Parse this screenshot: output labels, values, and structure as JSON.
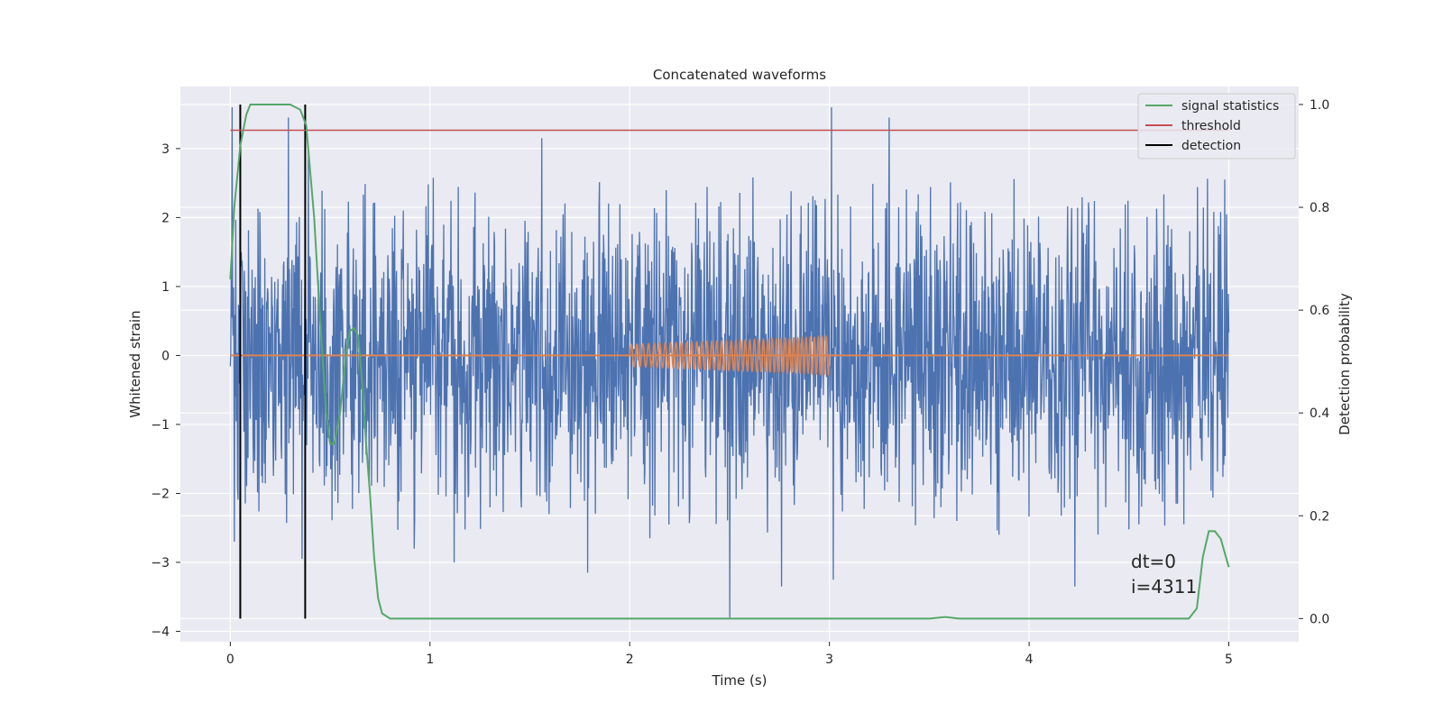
{
  "chart_data": {
    "type": "line",
    "title": "Concatenated waveforms",
    "xlabel": "Time (s)",
    "ylabel": "Whitened strain",
    "ylabel_right": "Detection probability",
    "xlim": [
      -0.25,
      5.35
    ],
    "ylim": [
      -4.15,
      3.9
    ],
    "ylim_right": [
      -0.045,
      1.035
    ],
    "x_ticks": [
      0,
      1,
      2,
      3,
      4,
      5
    ],
    "y_ticks": [
      -4,
      -3,
      -2,
      -1,
      0,
      1,
      2,
      3
    ],
    "y_ticks_right": [
      0.0,
      0.2,
      0.4,
      0.6,
      0.8,
      1.0
    ],
    "x_tick_labels": [
      "0",
      "1",
      "2",
      "3",
      "4",
      "5"
    ],
    "y_tick_labels": [
      "−4",
      "−3",
      "−2",
      "−1",
      "0",
      "1",
      "2",
      "3"
    ],
    "y_tick_labels_right": [
      "0.0",
      "0.2",
      "0.4",
      "0.6",
      "0.8",
      "1.0"
    ],
    "grid": true,
    "legend_position": "top-right",
    "legend": [
      {
        "label": "signal statistics",
        "color": "#55a868"
      },
      {
        "label": "threshold",
        "color": "#c44e52"
      },
      {
        "label": "detection",
        "color": "#000000"
      }
    ],
    "colors": {
      "strain": "#4c72b0",
      "waveform": "#dd8452",
      "signal_statistics": "#55a868",
      "threshold": "#c44e52",
      "detection": "#000000",
      "background": "#eaeaf2"
    },
    "strain": {
      "x_range": [
        0,
        5
      ],
      "typical_abs": 1.3,
      "spikes": [
        {
          "x": 0.01,
          "y": 3.6
        },
        {
          "x": 0.02,
          "y": -2.7
        },
        {
          "x": 0.29,
          "y": 3.45
        },
        {
          "x": 0.36,
          "y": -2.95
        },
        {
          "x": 0.39,
          "y": 3.0
        },
        {
          "x": 0.92,
          "y": -2.8
        },
        {
          "x": 1.12,
          "y": -3.0
        },
        {
          "x": 1.56,
          "y": 3.15
        },
        {
          "x": 1.79,
          "y": -3.15
        },
        {
          "x": 2.1,
          "y": -2.65
        },
        {
          "x": 2.5,
          "y": -3.8
        },
        {
          "x": 2.76,
          "y": -3.35
        },
        {
          "x": 3.01,
          "y": 3.6
        },
        {
          "x": 3.02,
          "y": -3.25
        },
        {
          "x": 3.3,
          "y": 3.45
        },
        {
          "x": 3.85,
          "y": -2.6
        },
        {
          "x": 4.23,
          "y": -3.35
        },
        {
          "x": 4.55,
          "y": -2.45
        },
        {
          "x": 4.98,
          "y": 2.55
        }
      ]
    },
    "waveform": {
      "baseline": 0,
      "chirp_start": 2.0,
      "chirp_end": 3.0,
      "amplitude_start": 0.16,
      "amplitude_end": 0.27,
      "cycles": 42
    },
    "signal_statistics": {
      "x": [
        0,
        0.02,
        0.05,
        0.08,
        0.1,
        0.15,
        0.2,
        0.3,
        0.35,
        0.38,
        0.42,
        0.45,
        0.48,
        0.5,
        0.52,
        0.55,
        0.58,
        0.6,
        0.62,
        0.64,
        0.66,
        0.68,
        0.7,
        0.72,
        0.74,
        0.76,
        0.8,
        1.5,
        2.0,
        3.0,
        3.5,
        3.58,
        3.65,
        4.0,
        4.5,
        4.8,
        4.84,
        4.87,
        4.9,
        4.93,
        4.96,
        5.0
      ],
      "y": [
        0.66,
        0.8,
        0.92,
        0.98,
        1.0,
        1.0,
        1.0,
        1.0,
        0.99,
        0.96,
        0.78,
        0.58,
        0.4,
        0.34,
        0.34,
        0.4,
        0.52,
        0.56,
        0.565,
        0.55,
        0.46,
        0.34,
        0.24,
        0.12,
        0.04,
        0.01,
        0.0,
        0.0,
        0.0,
        0.0,
        0.0,
        0.003,
        0.0,
        0.0,
        0.0,
        0.0,
        0.02,
        0.12,
        0.17,
        0.17,
        0.155,
        0.1
      ]
    },
    "threshold": {
      "x": [
        0,
        5
      ],
      "y": 0.95
    },
    "detections": [
      0.05,
      0.375
    ],
    "annotations": [
      "dt=0",
      "i=4311"
    ]
  }
}
